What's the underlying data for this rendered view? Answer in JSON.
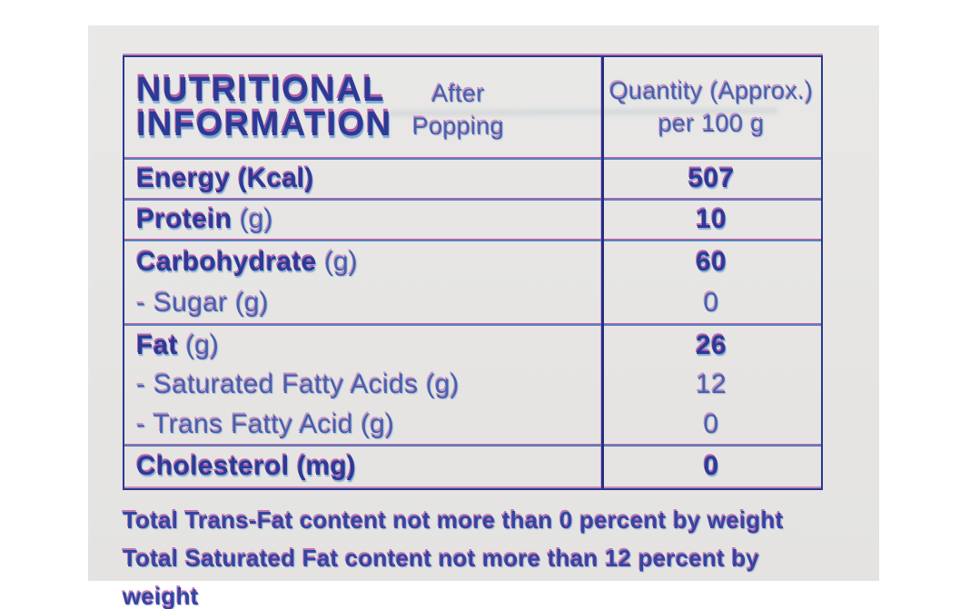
{
  "table": {
    "header": {
      "title_line1": "NUTRITIONAL",
      "title_line2": "INFORMATION",
      "subtitle_line1": "After",
      "subtitle_line2": "Popping",
      "quantity_line1": "Quantity (Approx.)",
      "quantity_line2": "per 100 g"
    },
    "rows": [
      {
        "name": "Energy",
        "unit": "(Kcal)",
        "value": "507"
      },
      {
        "name": "Protein",
        "unit": "(g)",
        "value": "10"
      },
      {
        "name": "Carbohydrate",
        "unit": "(g)",
        "value": "60"
      },
      {
        "name": "- Sugar",
        "unit": "(g)",
        "value": "0"
      },
      {
        "name": "Fat",
        "unit": "(g)",
        "value": "26"
      },
      {
        "name": "- Saturated Fatty Acids",
        "unit": "(g)",
        "value": "12"
      },
      {
        "name": "- Trans Fatty Acid",
        "unit": "(g)",
        "value": "0"
      },
      {
        "name": "Cholesterol",
        "unit": "(mg)",
        "value": "0"
      }
    ]
  },
  "footnotes": [
    "Total Trans-Fat content not more than 0 percent by weight",
    "Total Saturated Fat content not more than 12 percent by weight"
  ],
  "colors": {
    "text_navy": "#2c3a96",
    "text_blue": "#4660ad",
    "fringe_magenta": "#ac3e98",
    "line_magenta": "#bb60a8",
    "line_blue": "#4187c5",
    "border_navy": "#2a3890",
    "package_bg": "#e7e6e4",
    "photo_bg": "#ffffff"
  }
}
